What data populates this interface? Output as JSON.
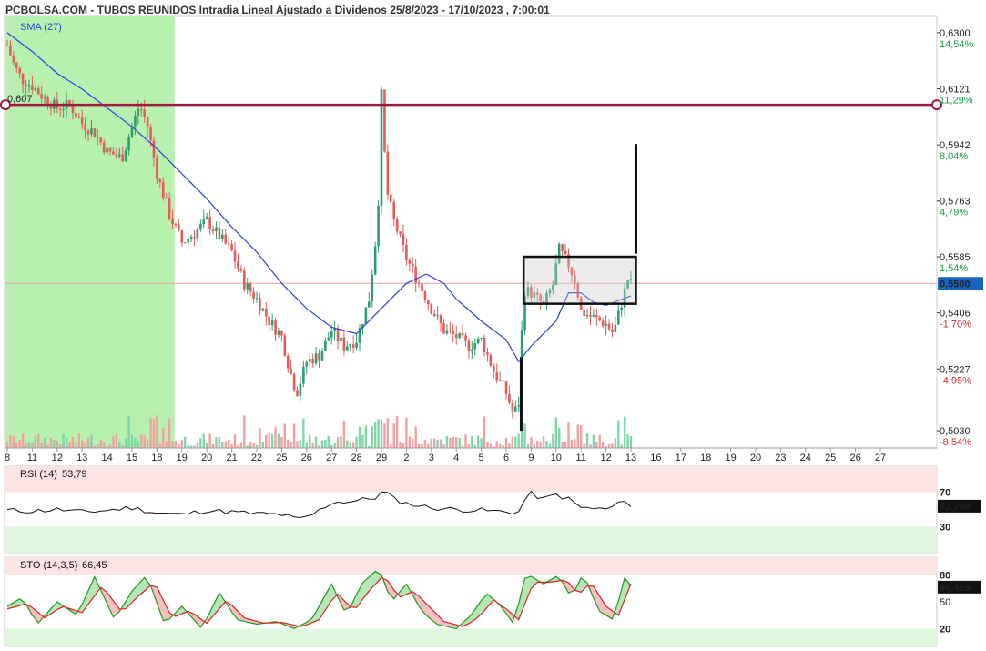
{
  "header": {
    "title": "PCBOLSA.COM - TUBOS REUNIDOS Intradia Lineal Ajustado a Dividenos 25/8/2023 - 17/10/2023 , 7:00:01",
    "sma_label": "SMA (27)"
  },
  "colors": {
    "up": "#2e9e6e",
    "down": "#e85a5a",
    "sma": "#2f3fd6",
    "resistance": "#a01a40",
    "green_zone": "#b8f0b0",
    "current_line": "#e8a0a0",
    "price_box": "#111111"
  },
  "chart_data": [
    {
      "type": "candlestick",
      "ylim": [
        0.4975,
        0.6352
      ],
      "price_ticks": [
        {
          "value": 0.63,
          "label": "0,6300",
          "pct": "14,54%"
        },
        {
          "value": 0.6121,
          "label": "0,6121",
          "pct": "11,29%"
        },
        {
          "value": 0.5942,
          "label": "0,5942",
          "pct": "8,04%"
        },
        {
          "value": 0.5763,
          "label": "0,5763",
          "pct": "4,79%"
        },
        {
          "value": 0.5585,
          "label": "0,5585",
          "pct": "1,54%"
        },
        {
          "value": 0.5406,
          "label": "0,5406",
          "pct": "-1,70%"
        },
        {
          "value": 0.5227,
          "label": "0,5227",
          "pct": "-4,95%"
        },
        {
          "value": 0.503,
          "label": "0,5030",
          "pct": "-8,54%"
        }
      ],
      "current_price": {
        "value": 0.55,
        "label": "0,5500"
      },
      "resistance": {
        "value": 0.607,
        "label": "0,607"
      },
      "x_labels": [
        "8",
        "11",
        "12",
        "13",
        "14",
        "15",
        "18",
        "19",
        "20",
        "21",
        "22",
        "25",
        "26",
        "27",
        "28",
        "29",
        "2",
        "3",
        "4",
        "5",
        "6",
        "9",
        "10",
        "11",
        "12",
        "13",
        "16",
        "17",
        "18",
        "19",
        "20",
        "23",
        "24",
        "25",
        "26",
        "27"
      ],
      "sessions_with_data": 25,
      "green_zone_sessions": 7,
      "close_path": [
        {
          "d": 0,
          "p": 0.626
        },
        {
          "d": 0.3,
          "p": 0.619
        },
        {
          "d": 0.6,
          "p": 0.615
        },
        {
          "d": 1.0,
          "p": 0.613
        },
        {
          "d": 1.5,
          "p": 0.609
        },
        {
          "d": 2.0,
          "p": 0.606
        },
        {
          "d": 2.5,
          "p": 0.607
        },
        {
          "d": 3.0,
          "p": 0.601
        },
        {
          "d": 3.5,
          "p": 0.598
        },
        {
          "d": 4.0,
          "p": 0.592
        },
        {
          "d": 4.6,
          "p": 0.59
        },
        {
          "d": 5.0,
          "p": 0.6
        },
        {
          "d": 5.3,
          "p": 0.607
        },
        {
          "d": 5.6,
          "p": 0.601
        },
        {
          "d": 6.0,
          "p": 0.585
        },
        {
          "d": 6.5,
          "p": 0.572
        },
        {
          "d": 7.0,
          "p": 0.563
        },
        {
          "d": 7.5,
          "p": 0.566
        },
        {
          "d": 8.0,
          "p": 0.57
        },
        {
          "d": 8.5,
          "p": 0.565
        },
        {
          "d": 9.0,
          "p": 0.56
        },
        {
          "d": 9.5,
          "p": 0.55
        },
        {
          "d": 10.0,
          "p": 0.545
        },
        {
          "d": 10.5,
          "p": 0.538
        },
        {
          "d": 11.0,
          "p": 0.533
        },
        {
          "d": 11.3,
          "p": 0.523
        },
        {
          "d": 11.6,
          "p": 0.515
        },
        {
          "d": 12.0,
          "p": 0.525
        },
        {
          "d": 12.5,
          "p": 0.527
        },
        {
          "d": 13.0,
          "p": 0.535
        },
        {
          "d": 13.5,
          "p": 0.53
        },
        {
          "d": 14.0,
          "p": 0.532
        },
        {
          "d": 14.5,
          "p": 0.545
        },
        {
          "d": 14.85,
          "p": 0.57
        },
        {
          "d": 15.0,
          "p": 0.61
        },
        {
          "d": 15.2,
          "p": 0.58
        },
        {
          "d": 15.5,
          "p": 0.57
        },
        {
          "d": 16.0,
          "p": 0.558
        },
        {
          "d": 16.5,
          "p": 0.55
        },
        {
          "d": 17.0,
          "p": 0.542
        },
        {
          "d": 17.5,
          "p": 0.535
        },
        {
          "d": 18.0,
          "p": 0.533
        },
        {
          "d": 18.5,
          "p": 0.53
        },
        {
          "d": 19.0,
          "p": 0.532
        },
        {
          "d": 19.5,
          "p": 0.522
        },
        {
          "d": 20.0,
          "p": 0.515
        },
        {
          "d": 20.3,
          "p": 0.508
        },
        {
          "d": 20.5,
          "p": 0.512
        },
        {
          "d": 20.7,
          "p": 0.548
        },
        {
          "d": 21.0,
          "p": 0.547
        },
        {
          "d": 21.5,
          "p": 0.543
        },
        {
          "d": 21.9,
          "p": 0.55
        },
        {
          "d": 22.1,
          "p": 0.561
        },
        {
          "d": 22.5,
          "p": 0.556
        },
        {
          "d": 22.8,
          "p": 0.55
        },
        {
          "d": 23.0,
          "p": 0.541
        },
        {
          "d": 23.5,
          "p": 0.539
        },
        {
          "d": 24.0,
          "p": 0.537
        },
        {
          "d": 24.3,
          "p": 0.534
        },
        {
          "d": 24.6,
          "p": 0.543
        },
        {
          "d": 24.9,
          "p": 0.552
        },
        {
          "d": 25.0,
          "p": 0.55
        }
      ],
      "sma_path": [
        {
          "d": 0,
          "p": 0.63
        },
        {
          "d": 1,
          "p": 0.624
        },
        {
          "d": 2,
          "p": 0.617
        },
        {
          "d": 3,
          "p": 0.612
        },
        {
          "d": 4,
          "p": 0.606
        },
        {
          "d": 5,
          "p": 0.6
        },
        {
          "d": 6,
          "p": 0.593
        },
        {
          "d": 7,
          "p": 0.585
        },
        {
          "d": 8,
          "p": 0.577
        },
        {
          "d": 9,
          "p": 0.568
        },
        {
          "d": 10,
          "p": 0.56
        },
        {
          "d": 11,
          "p": 0.55
        },
        {
          "d": 12,
          "p": 0.542
        },
        {
          "d": 13,
          "p": 0.536
        },
        {
          "d": 14,
          "p": 0.534
        },
        {
          "d": 15,
          "p": 0.542
        },
        {
          "d": 16,
          "p": 0.55
        },
        {
          "d": 16.8,
          "p": 0.553
        },
        {
          "d": 17.5,
          "p": 0.55
        },
        {
          "d": 18,
          "p": 0.545
        },
        {
          "d": 19,
          "p": 0.538
        },
        {
          "d": 20,
          "p": 0.532
        },
        {
          "d": 20.5,
          "p": 0.525
        },
        {
          "d": 21,
          "p": 0.53
        },
        {
          "d": 22,
          "p": 0.538
        },
        {
          "d": 22.5,
          "p": 0.547
        },
        {
          "d": 23,
          "p": 0.547
        },
        {
          "d": 23.5,
          "p": 0.544
        },
        {
          "d": 24,
          "p": 0.543
        },
        {
          "d": 25,
          "p": 0.546
        }
      ],
      "price_box": {
        "d_from": 20.7,
        "d_to": 25.2,
        "p_low": 0.5435,
        "p_high": 0.5585
      },
      "marker_lines": [
        {
          "d": 20.6,
          "p_from": 0.503,
          "p_to": 0.5265
        },
        {
          "d": 25.2,
          "p_from": 0.5595,
          "p_to": 0.5945
        }
      ]
    },
    {
      "type": "line",
      "name": "RSI",
      "title": "RSI (14)",
      "title_value": "53,79",
      "ylim": [
        0,
        100
      ],
      "levels": [
        {
          "value": 70,
          "label": "70"
        },
        {
          "value": 30,
          "label": "30"
        }
      ],
      "current": {
        "value": 53.798,
        "label": "53,798"
      },
      "points": [
        {
          "d": 0,
          "v": 49
        },
        {
          "d": 1,
          "v": 48
        },
        {
          "d": 2,
          "v": 50
        },
        {
          "d": 3,
          "v": 47
        },
        {
          "d": 4,
          "v": 49
        },
        {
          "d": 5,
          "v": 52
        },
        {
          "d": 6,
          "v": 46
        },
        {
          "d": 7,
          "v": 44
        },
        {
          "d": 8,
          "v": 49
        },
        {
          "d": 9,
          "v": 47
        },
        {
          "d": 10,
          "v": 45
        },
        {
          "d": 11,
          "v": 44
        },
        {
          "d": 11.7,
          "v": 38
        },
        {
          "d": 12.3,
          "v": 45
        },
        {
          "d": 13,
          "v": 58
        },
        {
          "d": 14,
          "v": 60
        },
        {
          "d": 14.8,
          "v": 64
        },
        {
          "d": 15.1,
          "v": 72
        },
        {
          "d": 15.5,
          "v": 62
        },
        {
          "d": 16,
          "v": 57
        },
        {
          "d": 17,
          "v": 52
        },
        {
          "d": 18,
          "v": 50
        },
        {
          "d": 19,
          "v": 49
        },
        {
          "d": 20,
          "v": 47
        },
        {
          "d": 20.5,
          "v": 47
        },
        {
          "d": 20.7,
          "v": 60
        },
        {
          "d": 21,
          "v": 68
        },
        {
          "d": 21.5,
          "v": 62
        },
        {
          "d": 22,
          "v": 67
        },
        {
          "d": 22.5,
          "v": 62
        },
        {
          "d": 23,
          "v": 52
        },
        {
          "d": 23.5,
          "v": 51
        },
        {
          "d": 24,
          "v": 50
        },
        {
          "d": 24.5,
          "v": 56
        },
        {
          "d": 24.8,
          "v": 63
        },
        {
          "d": 25,
          "v": 54
        }
      ]
    },
    {
      "type": "line",
      "name": "STO",
      "title": "STO (14,3,5)",
      "title_value": "66,45",
      "ylim": [
        0,
        100
      ],
      "levels": [
        {
          "value": 80,
          "label": "80"
        },
        {
          "value": 50,
          "label": "50"
        },
        {
          "value": 20,
          "label": "20"
        }
      ],
      "current": {
        "value": 66.459,
        "label": "66,459"
      },
      "k_points": [
        {
          "d": 0,
          "v": 45
        },
        {
          "d": 0.6,
          "v": 55
        },
        {
          "d": 1.2,
          "v": 25
        },
        {
          "d": 2,
          "v": 50
        },
        {
          "d": 2.8,
          "v": 35
        },
        {
          "d": 3.5,
          "v": 78
        },
        {
          "d": 4.3,
          "v": 30
        },
        {
          "d": 5.0,
          "v": 62
        },
        {
          "d": 5.6,
          "v": 80
        },
        {
          "d": 6.3,
          "v": 25
        },
        {
          "d": 7.0,
          "v": 45
        },
        {
          "d": 7.8,
          "v": 20
        },
        {
          "d": 8.5,
          "v": 60
        },
        {
          "d": 9.2,
          "v": 30
        },
        {
          "d": 10.0,
          "v": 25
        },
        {
          "d": 10.8,
          "v": 28
        },
        {
          "d": 11.5,
          "v": 20
        },
        {
          "d": 12.2,
          "v": 30
        },
        {
          "d": 13.0,
          "v": 70
        },
        {
          "d": 13.6,
          "v": 35
        },
        {
          "d": 14.2,
          "v": 70
        },
        {
          "d": 14.9,
          "v": 88
        },
        {
          "d": 15.4,
          "v": 50
        },
        {
          "d": 16.0,
          "v": 70
        },
        {
          "d": 16.6,
          "v": 40
        },
        {
          "d": 17.2,
          "v": 25
        },
        {
          "d": 18.0,
          "v": 20
        },
        {
          "d": 18.6,
          "v": 35
        },
        {
          "d": 19.2,
          "v": 60
        },
        {
          "d": 19.8,
          "v": 45
        },
        {
          "d": 20.3,
          "v": 25
        },
        {
          "d": 20.8,
          "v": 82
        },
        {
          "d": 21.5,
          "v": 70
        },
        {
          "d": 22.1,
          "v": 80
        },
        {
          "d": 22.6,
          "v": 55
        },
        {
          "d": 23.1,
          "v": 82
        },
        {
          "d": 23.7,
          "v": 40
        },
        {
          "d": 24.3,
          "v": 30
        },
        {
          "d": 24.8,
          "v": 82
        },
        {
          "d": 25.0,
          "v": 68
        }
      ],
      "d_points": [
        {
          "d": 0,
          "v": 42
        },
        {
          "d": 0.8,
          "v": 48
        },
        {
          "d": 1.5,
          "v": 32
        },
        {
          "d": 2.2,
          "v": 45
        },
        {
          "d": 3.0,
          "v": 38
        },
        {
          "d": 3.8,
          "v": 68
        },
        {
          "d": 4.6,
          "v": 38
        },
        {
          "d": 5.2,
          "v": 55
        },
        {
          "d": 5.9,
          "v": 72
        },
        {
          "d": 6.6,
          "v": 32
        },
        {
          "d": 7.3,
          "v": 40
        },
        {
          "d": 8.0,
          "v": 26
        },
        {
          "d": 8.8,
          "v": 52
        },
        {
          "d": 9.5,
          "v": 32
        },
        {
          "d": 10.3,
          "v": 26
        },
        {
          "d": 11.0,
          "v": 27
        },
        {
          "d": 11.8,
          "v": 22
        },
        {
          "d": 12.5,
          "v": 30
        },
        {
          "d": 13.2,
          "v": 60
        },
        {
          "d": 13.9,
          "v": 40
        },
        {
          "d": 14.5,
          "v": 62
        },
        {
          "d": 15.1,
          "v": 80
        },
        {
          "d": 15.7,
          "v": 55
        },
        {
          "d": 16.3,
          "v": 62
        },
        {
          "d": 16.9,
          "v": 45
        },
        {
          "d": 17.5,
          "v": 28
        },
        {
          "d": 18.3,
          "v": 22
        },
        {
          "d": 18.9,
          "v": 33
        },
        {
          "d": 19.5,
          "v": 52
        },
        {
          "d": 20.0,
          "v": 42
        },
        {
          "d": 20.5,
          "v": 30
        },
        {
          "d": 21.1,
          "v": 72
        },
        {
          "d": 21.8,
          "v": 72
        },
        {
          "d": 22.4,
          "v": 75
        },
        {
          "d": 22.9,
          "v": 58
        },
        {
          "d": 23.4,
          "v": 72
        },
        {
          "d": 24.0,
          "v": 45
        },
        {
          "d": 24.5,
          "v": 35
        },
        {
          "d": 25.0,
          "v": 70
        }
      ]
    }
  ]
}
